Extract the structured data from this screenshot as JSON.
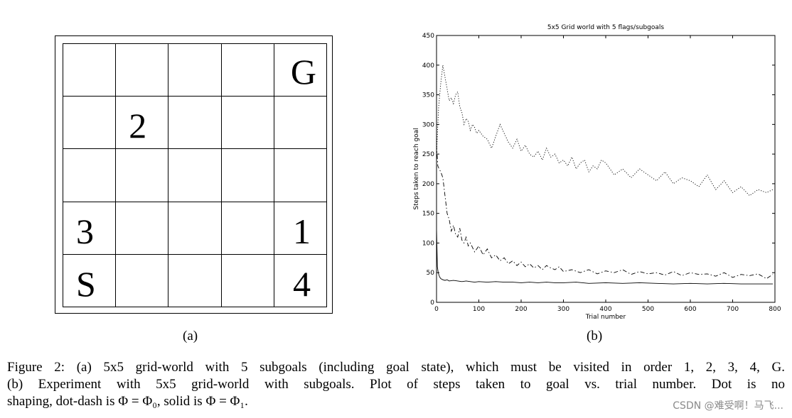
{
  "grid_figure": {
    "rows": [
      [
        "",
        "",
        "",
        "",
        "G"
      ],
      [
        "",
        "2",
        "",
        "",
        ""
      ],
      [
        "",
        "",
        "",
        "",
        ""
      ],
      [
        "3",
        "",
        "",
        "",
        "1"
      ],
      [
        "S",
        "",
        "",
        "",
        "4"
      ]
    ],
    "sublabel": "(a)"
  },
  "chart_sublabel": "(b)",
  "chart_data": {
    "type": "line",
    "title": "5x5 Grid world with 5 flags/subgoals",
    "xlabel": "Trial number",
    "ylabel": "Steps taken to reach goal",
    "xlim": [
      0,
      800
    ],
    "ylim": [
      0,
      450
    ],
    "xticks": [
      0,
      100,
      200,
      300,
      400,
      500,
      600,
      700,
      800
    ],
    "yticks": [
      0,
      50,
      100,
      150,
      200,
      250,
      300,
      350,
      400,
      450
    ],
    "grid": false,
    "series": [
      {
        "style": "dotted",
        "x": [
          0,
          5,
          10,
          15,
          20,
          25,
          30,
          35,
          40,
          45,
          50,
          55,
          60,
          65,
          70,
          75,
          80,
          85,
          90,
          95,
          100,
          110,
          120,
          130,
          140,
          150,
          160,
          170,
          180,
          190,
          200,
          210,
          220,
          230,
          240,
          250,
          260,
          270,
          280,
          290,
          300,
          310,
          320,
          330,
          340,
          350,
          360,
          370,
          380,
          390,
          400,
          420,
          440,
          460,
          480,
          500,
          520,
          540,
          560,
          580,
          600,
          620,
          640,
          660,
          680,
          700,
          720,
          740,
          760,
          780,
          795
        ],
        "y": [
          250,
          330,
          370,
          400,
          380,
          360,
          340,
          345,
          335,
          350,
          355,
          330,
          320,
          300,
          310,
          305,
          290,
          300,
          295,
          285,
          290,
          280,
          275,
          260,
          280,
          300,
          285,
          270,
          260,
          275,
          255,
          265,
          250,
          245,
          255,
          240,
          260,
          245,
          250,
          235,
          240,
          230,
          245,
          225,
          235,
          240,
          220,
          230,
          225,
          240,
          235,
          215,
          225,
          210,
          225,
          215,
          205,
          220,
          200,
          210,
          205,
          195,
          215,
          190,
          205,
          185,
          195,
          180,
          190,
          185,
          190
        ]
      },
      {
        "style": "dashdot",
        "x": [
          0,
          3,
          6,
          10,
          15,
          20,
          25,
          30,
          35,
          40,
          45,
          50,
          55,
          60,
          65,
          70,
          75,
          80,
          90,
          100,
          110,
          120,
          130,
          140,
          150,
          160,
          170,
          180,
          190,
          200,
          210,
          220,
          230,
          240,
          250,
          260,
          270,
          280,
          290,
          300,
          320,
          340,
          360,
          380,
          400,
          420,
          440,
          460,
          480,
          500,
          520,
          540,
          560,
          580,
          600,
          620,
          640,
          660,
          680,
          700,
          720,
          740,
          760,
          780,
          795
        ],
        "y": [
          265,
          230,
          225,
          220,
          210,
          180,
          150,
          140,
          120,
          130,
          115,
          110,
          125,
          105,
          100,
          110,
          95,
          100,
          85,
          95,
          80,
          90,
          75,
          80,
          70,
          75,
          65,
          70,
          62,
          68,
          60,
          65,
          58,
          62,
          55,
          62,
          58,
          55,
          60,
          52,
          55,
          50,
          55,
          48,
          53,
          50,
          55,
          47,
          52,
          48,
          50,
          46,
          52,
          45,
          50,
          47,
          48,
          44,
          50,
          42,
          47,
          45,
          48,
          40,
          47
        ]
      },
      {
        "style": "solid",
        "x": [
          0,
          2,
          4,
          6,
          8,
          10,
          15,
          20,
          25,
          30,
          40,
          50,
          60,
          70,
          80,
          90,
          100,
          120,
          140,
          160,
          180,
          200,
          220,
          240,
          260,
          280,
          300,
          330,
          360,
          400,
          440,
          480,
          520,
          560,
          600,
          640,
          680,
          720,
          760,
          795
        ],
        "y": [
          125,
          60,
          50,
          45,
          42,
          40,
          38,
          37,
          38,
          36,
          37,
          36,
          35,
          36,
          35,
          34,
          35,
          34,
          35,
          34,
          34,
          33,
          34,
          33,
          34,
          33,
          33,
          34,
          32,
          33,
          32,
          33,
          32,
          31,
          32,
          31,
          32,
          31,
          31,
          31
        ]
      }
    ]
  },
  "caption": {
    "line1": "Figure 2: (a) 5x5 grid-world with 5 subgoals (including goal state), which must be visited in order 1, 2, 3, 4, G.",
    "line2": "(b) Experiment with 5x5 grid-world with subgoals.  Plot of steps taken to goal vs.  trial number.  Dot is no",
    "line3": "shaping, dot-dash is Φ = Φ₀, solid is Φ = Φ₁."
  },
  "watermark": "CSDN @难受啊！马飞..."
}
